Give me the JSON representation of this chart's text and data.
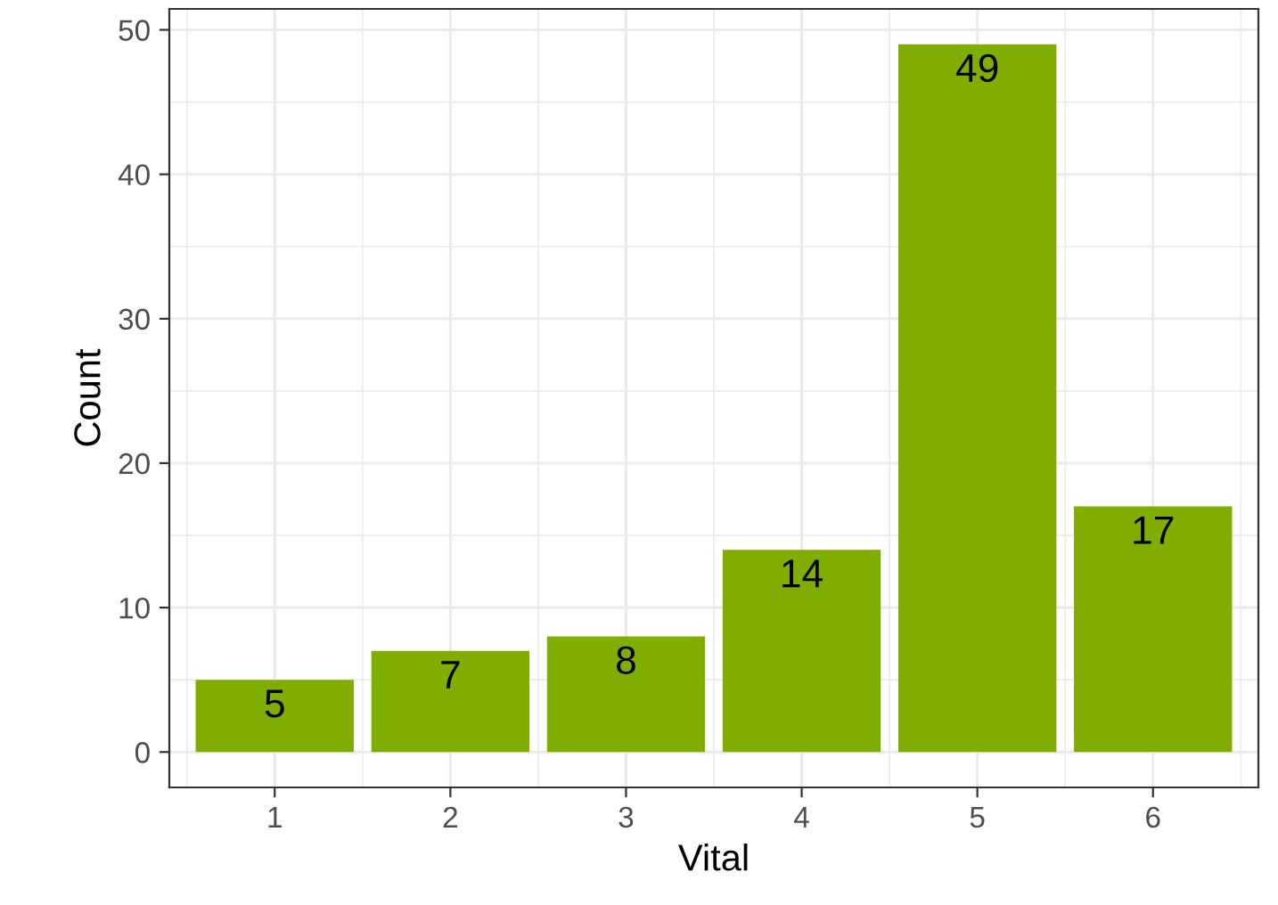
{
  "chart_data": {
    "type": "bar",
    "xlabel": "Vital",
    "ylabel": "Count",
    "categories": [
      "1",
      "2",
      "3",
      "4",
      "5",
      "6"
    ],
    "values": [
      5,
      7,
      8,
      14,
      49,
      17
    ],
    "color": "#7fae00",
    "ylim": [
      -2.45,
      51.45
    ],
    "yticks": [
      0,
      10,
      20,
      30,
      40,
      50
    ],
    "grid": true,
    "data_labels": true
  }
}
